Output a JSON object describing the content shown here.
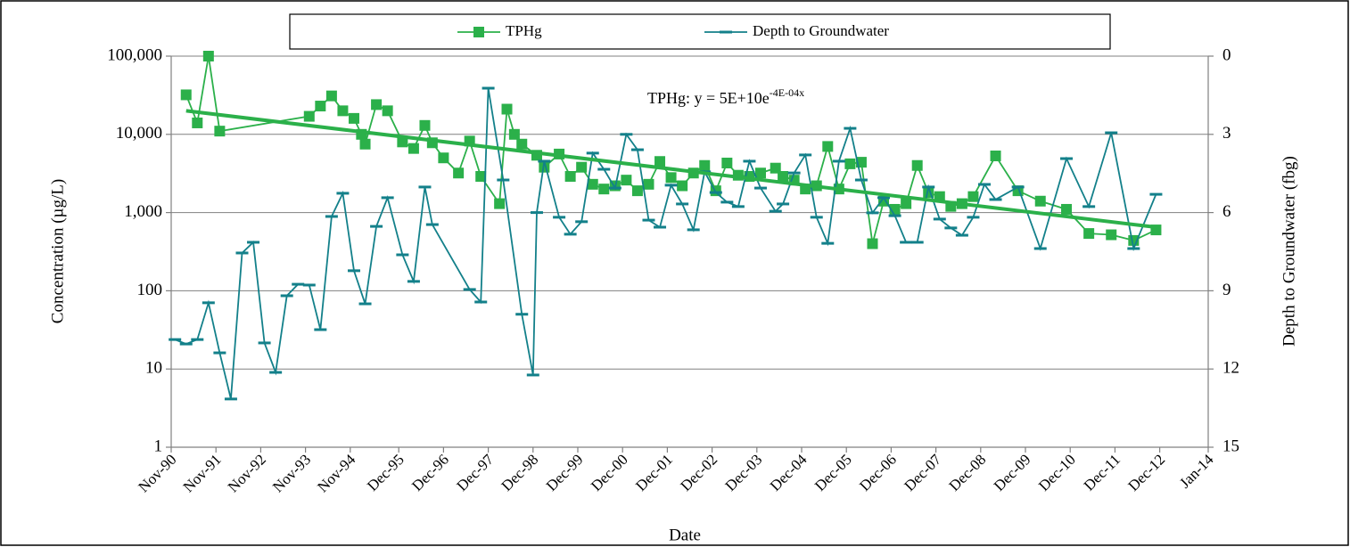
{
  "chart_data": {
    "type": "line",
    "x_label": "Date",
    "y_label": "Concentration (µg/L)",
    "y2_label": "Depth to Groundwater (fbg)",
    "log_y": true,
    "y2_inverted": true,
    "grid": true,
    "legend": "top",
    "xlim": [
      "1990-11",
      "2014-01"
    ],
    "xticks": [
      {
        "value": "1990-11",
        "label": "Nov-90"
      },
      {
        "value": "1991-11",
        "label": "Nov-91"
      },
      {
        "value": "1992-11",
        "label": "Nov-92"
      },
      {
        "value": "1993-11",
        "label": "Nov-93"
      },
      {
        "value": "1994-11",
        "label": "Nov-94"
      },
      {
        "value": "1995-12",
        "label": "Dec-95"
      },
      {
        "value": "1996-12",
        "label": "Dec-96"
      },
      {
        "value": "1997-12",
        "label": "Dec-97"
      },
      {
        "value": "1998-12",
        "label": "Dec-98"
      },
      {
        "value": "1999-12",
        "label": "Dec-99"
      },
      {
        "value": "2000-12",
        "label": "Dec-00"
      },
      {
        "value": "2001-12",
        "label": "Dec-01"
      },
      {
        "value": "2002-12",
        "label": "Dec-02"
      },
      {
        "value": "2003-12",
        "label": "Dec-03"
      },
      {
        "value": "2004-12",
        "label": "Dec-04"
      },
      {
        "value": "2005-12",
        "label": "Dec-05"
      },
      {
        "value": "2006-12",
        "label": "Dec-06"
      },
      {
        "value": "2007-12",
        "label": "Dec-07"
      },
      {
        "value": "2008-12",
        "label": "Dec-08"
      },
      {
        "value": "2009-12",
        "label": "Dec-09"
      },
      {
        "value": "2010-12",
        "label": "Dec-10"
      },
      {
        "value": "2011-12",
        "label": "Dec-11"
      },
      {
        "value": "2012-12",
        "label": "Dec-12"
      },
      {
        "value": "2014-01",
        "label": "Jan-14"
      }
    ],
    "ylim": [
      1,
      100000
    ],
    "yticks": [
      1,
      10,
      100,
      {
        "value": 1000,
        "label": "1,000"
      },
      {
        "value": 10000,
        "label": "10,000"
      },
      {
        "value": 100000,
        "label": "100,000"
      }
    ],
    "y2lim": [
      0,
      15
    ],
    "y2ticks": [
      0,
      3,
      6,
      9,
      12,
      15
    ],
    "series": [
      {
        "name": "TPHg",
        "color": "#2bb04a",
        "marker": "square",
        "x": [
          "1991-03",
          "1991-06",
          "1991-09",
          "1991-12",
          "1993-12",
          "1994-03",
          "1994-06",
          "1994-09",
          "1994-12",
          "1995-02",
          "1995-03",
          "1995-06",
          "1995-09",
          "1996-01",
          "1996-04",
          "1996-07",
          "1996-09",
          "1996-12",
          "1997-04",
          "1997-07",
          "1997-10",
          "1998-03",
          "1998-05",
          "1998-07",
          "1998-09",
          "1999-01",
          "1999-03",
          "1999-07",
          "1999-10",
          "2000-01",
          "2000-04",
          "2000-07",
          "2000-10",
          "2001-01",
          "2001-04",
          "2001-07",
          "2001-10",
          "2002-01",
          "2002-04",
          "2002-07",
          "2002-10",
          "2003-01",
          "2003-04",
          "2003-07",
          "2003-10",
          "2004-01",
          "2004-05",
          "2004-07",
          "2004-10",
          "2005-01",
          "2005-04",
          "2005-07",
          "2005-10",
          "2006-01",
          "2006-04",
          "2006-07",
          "2006-10",
          "2007-01",
          "2007-04",
          "2007-07",
          "2007-10",
          "2008-01",
          "2008-04",
          "2008-07",
          "2008-10",
          "2009-04",
          "2009-10",
          "2010-04",
          "2010-11",
          "2011-05",
          "2011-11",
          "2012-05",
          "2012-11"
        ],
        "values": [
          32000,
          14000,
          100000,
          11000,
          17000,
          23000,
          31000,
          20000,
          16000,
          10000,
          7500,
          24000,
          20000,
          8000,
          6600,
          13000,
          7800,
          5000,
          3200,
          8200,
          2900,
          1300,
          21000,
          10000,
          7500,
          5400,
          3800,
          5600,
          2900,
          3800,
          2300,
          2000,
          2200,
          2600,
          1900,
          2300,
          4500,
          2800,
          2200,
          3200,
          4000,
          1900,
          4300,
          3000,
          2900,
          3200,
          3700,
          2900,
          2600,
          2000,
          2200,
          7000,
          2000,
          4200,
          4400,
          400,
          1400,
          1100,
          1300,
          4000,
          1800,
          1600,
          1200,
          1300,
          1600,
          5300,
          1900,
          1400,
          1100,
          540,
          520,
          440,
          600
        ]
      },
      {
        "name": "Depth to Groundwater",
        "color": "#13808a",
        "marker": "dash",
        "axis": "y2",
        "x": [
          "1990-12",
          "1991-03",
          "1991-06",
          "1991-09",
          "1991-12",
          "1992-03",
          "1992-06",
          "1992-09",
          "1992-12",
          "1993-03",
          "1993-06",
          "1993-09",
          "1993-12",
          "1994-03",
          "1994-06",
          "1994-09",
          "1994-12",
          "1995-03",
          "1995-06",
          "1995-09",
          "1996-01",
          "1996-04",
          "1996-07",
          "1996-09",
          "1997-07",
          "1997-10",
          "1997-12",
          "1998-04",
          "1998-09",
          "1998-12",
          "1999-01",
          "1999-03",
          "1999-07",
          "1999-10",
          "2000-01",
          "2000-04",
          "2000-07",
          "2000-10",
          "2001-01",
          "2001-04",
          "2001-07",
          "2001-10",
          "2002-01",
          "2002-04",
          "2002-07",
          "2002-10",
          "2003-01",
          "2003-04",
          "2003-07",
          "2003-10",
          "2004-01",
          "2004-05",
          "2004-07",
          "2004-10",
          "2005-01",
          "2005-04",
          "2005-07",
          "2005-10",
          "2006-01",
          "2006-04",
          "2006-07",
          "2006-10",
          "2007-01",
          "2007-04",
          "2007-07",
          "2007-10",
          "2008-01",
          "2008-04",
          "2008-07",
          "2008-10",
          "2009-01",
          "2009-04",
          "2009-10",
          "2010-04",
          "2010-11",
          "2011-05",
          "2011-11",
          "2012-05",
          "2012-11"
        ],
        "values": [
          10.87,
          11.04,
          10.87,
          9.46,
          11.38,
          13.15,
          7.55,
          7.14,
          11.0,
          12.13,
          9.19,
          8.75,
          8.78,
          10.49,
          6.15,
          5.26,
          8.23,
          9.5,
          6.53,
          5.43,
          7.62,
          8.64,
          5.02,
          6.46,
          8.95,
          9.43,
          1.23,
          4.75,
          9.9,
          12.23,
          6.0,
          4.03,
          6.18,
          6.83,
          6.35,
          3.72,
          4.34,
          5.06,
          3.0,
          3.59,
          6.29,
          6.56,
          4.95,
          5.67,
          6.66,
          4.44,
          5.23,
          5.6,
          5.77,
          4.03,
          5.06,
          5.95,
          5.67,
          4.48,
          3.79,
          6.18,
          7.18,
          4.03,
          2.77,
          4.75,
          6.01,
          5.43,
          6.12,
          7.14,
          7.14,
          5.02,
          6.25,
          6.59,
          6.87,
          6.18,
          4.92,
          5.5,
          5.02,
          7.38,
          3.93,
          5.77,
          2.94,
          7.38,
          5.3
        ]
      }
    ],
    "trendline": {
      "color": "#2bb04a",
      "x": [
        "1991-03",
        "2012-11"
      ],
      "values": [
        20000,
        650
      ],
      "label": "TPHg: y = 5E+10e",
      "label_exponent": "-4E-04x"
    }
  }
}
